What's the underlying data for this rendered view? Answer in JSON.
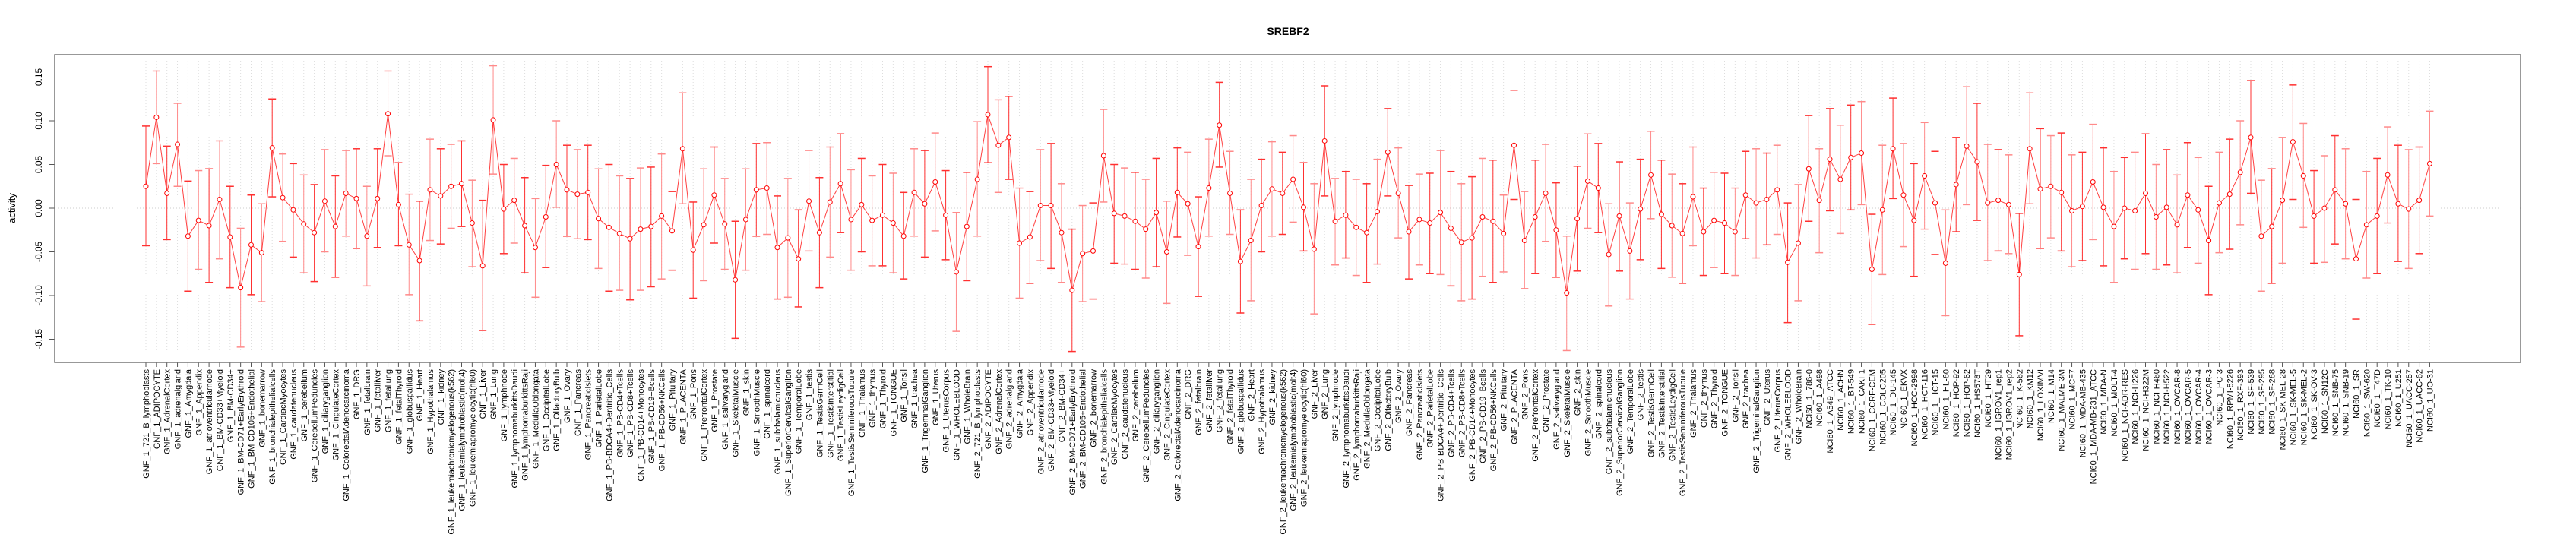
{
  "chart_data": {
    "type": "line",
    "title": "SREBF2",
    "xlabel": "",
    "ylabel": "activity",
    "ylim": [
      -0.175,
      0.175
    ],
    "yticks": [
      -0.15,
      -0.1,
      -0.05,
      0.0,
      0.05,
      0.1,
      0.15
    ],
    "ytick_labels": [
      "-0.15",
      "-0.10",
      "-0.05",
      "0.00",
      "0.05",
      "0.10",
      "0.15"
    ],
    "grid": "vertical dotted per category, horizontal dotted at 0",
    "legend": "none",
    "series_color": "#ff0000",
    "categories": [
      "GNF_1_721_B_lymphoblasts",
      "GNF_1_ADIPOCYTE",
      "GNF_1_AdrenalCortex",
      "GNF_1_adrenalgland",
      "GNF_1_Amygdala",
      "GNF_1_Appendix",
      "GNF_1_atrioventricularnode",
      "GNF_1_BM-CD33+Myeloid",
      "GNF_1_BM-CD34+",
      "GNF_1_BM-CD71+EarlyErythroid",
      "GNF_1_BM-CD105+Endothelial",
      "GNF_1_bonemarrow",
      "GNF_1_bronchialepithelialcells",
      "GNF_1_CardiacMyocytes",
      "GNF_1_caudatenucleus",
      "GNF_1_cerebellum",
      "GNF_1_CerebellumPeduncles",
      "GNF_1_ciliaryganglion",
      "GNF_1_CingulateCortex",
      "GNF_1_ColorectalAdenocarcinoma",
      "GNF_1_DRG",
      "GNF_1_fetalbrain",
      "GNF_1_fetalliver",
      "GNF_1_fetallung",
      "GNF_1_fetalThyroid",
      "GNF_1_globuspallidus",
      "GNF_1_Heart",
      "GNF_1_Hypothalamus",
      "GNF_1_kidney",
      "GNF_1_leukemiachronicmyelogenous(k562)",
      "GNF_1_leukemialymphoblastic(molt4)",
      "GNF_1_leukemiapromyelocytic(hl60)",
      "GNF_1_Liver",
      "GNF_1_Lung",
      "GNF_1_lymphnode",
      "GNF_1_lymphomaburkittsDaudi",
      "GNF_1_lymphomaburkittsRaji",
      "GNF_1_MedullaOblongata",
      "GNF_1_OccipitalLobe",
      "GNF_1_OlfactoryBulb",
      "GNF_1_Ovary",
      "GNF_1_Pancreas",
      "GNF_1_PancreaticIslets",
      "GNF_1_ParietalLobe",
      "GNF_1_PB-BDCA4+Dentritic_Cells",
      "GNF_1_PB-CD4+Tcells",
      "GNF_1_PB-CD8+Tcells",
      "GNF_1_PB-CD14+Monocytes",
      "GNF_1_PB-CD19+Bcells",
      "GNF_1_PB-CD56+NKCells",
      "GNF_1_Pituitary",
      "GNF_1_PLACENTA",
      "GNF_1_Pons",
      "GNF_1_PrefrontalCortex",
      "GNF_1_Prostate",
      "GNF_1_salivarygland",
      "GNF_1_SkeletalMuscle",
      "GNF_1_skin",
      "GNF_1_SmoothMuscle",
      "GNF_1_spinalcord",
      "GNF_1_subthalamicnucleus",
      "GNF_1_SuperiorCervicalGanglion",
      "GNF_1_TemporalLobe",
      "GNF_1_testis",
      "GNF_1_TestisGermCell",
      "GNF_1_TestisInterstitial",
      "GNF_1_TestisLeydigCell",
      "GNF_1_TestisSeminiferousTubule",
      "GNF_1_Thalamus",
      "GNF_1_thymus",
      "GNF_1_Thyroid",
      "GNF_1_TONGUE",
      "GNF_1_Tonsil",
      "GNF_1_trachea",
      "GNF_1_TrigeminalGanglion",
      "GNF_1_Uterus",
      "GNF_1_UterusCorpus",
      "GNF_1_WHOLEBLOOD",
      "GNF_1_WholeBrain",
      "GNF_2_721_B_lymphoblasts",
      "GNF_2_ADIPOCYTE",
      "GNF_2_AdrenalCortex",
      "GNF_2_adrenalgland",
      "GNF_2_Amygdala",
      "GNF_2_Appendix",
      "GNF_2_atrioventricularnode",
      "GNF_2_BM-CD33+Myeloid",
      "GNF_2_BM-CD34+",
      "GNF_2_BM-CD71+EarlyErythroid",
      "GNF_2_BM-CD105+Endothelial",
      "GNF_2_bonemarrow",
      "GNF_2_bronchialepithelialcells",
      "GNF_2_CardiacMyocytes",
      "GNF_2_caudatenucleus",
      "GNF_2_cerebellum",
      "GNF_2_CerebellumPeduncles",
      "GNF_2_ciliaryganglion",
      "GNF_2_CingulateCortex",
      "GNF_2_ColorectalAdenocarcinoma",
      "GNF_2_DRG",
      "GNF_2_fetalbrain",
      "GNF_2_fetalliver",
      "GNF_2_fetallung",
      "GNF_2_fetalThyroid",
      "GNF_2_globuspallidus",
      "GNF_2_Heart",
      "GNF_2_Hypothalamus",
      "GNF_2_kidney",
      "GNF_2_leukemiachronicmyelogenous(k562)",
      "GNF_2_leukemialymphoblastic(molt4)",
      "GNF_2_leukemiapromyelocytic(hl60)",
      "GNF_2_Liver",
      "GNF_2_Lung",
      "GNF_2_lymphnode",
      "GNF_2_lymphomaburkittsDaudi",
      "GNF_2_lymphomaburkittsRaji",
      "GNF_2_MedullaOblongata",
      "GNF_2_OccipitalLobe",
      "GNF_2_OlfactoryBulb",
      "GNF_2_Ovary",
      "GNF_2_Pancreas",
      "GNF_2_PancreaticIslets",
      "GNF_2_ParietalLobe",
      "GNF_2_PB-BDCA4+Dentritic_Cells",
      "GNF_2_PB-CD4+Tcells",
      "GNF_2_PB-CD8+Tcells",
      "GNF_2_PB-CD14+Monocytes",
      "GNF_2_PB-CD19+Bcells",
      "GNF_2_PB-CD56+NKCells",
      "GNF_2_Pituitary",
      "GNF_2_PLACENTA",
      "GNF_2_Pons",
      "GNF_2_PrefrontalCortex",
      "GNF_2_Prostate",
      "GNF_2_salivarygland",
      "GNF_2_SkeletalMuscle",
      "GNF_2_skin",
      "GNF_2_SmoothMuscle",
      "GNF_2_spinalcord",
      "GNF_2_subthalamicnucleus",
      "GNF_2_SuperiorCervicalGanglion",
      "GNF_2_TemporalLobe",
      "GNF_2_testis",
      "GNF_2_TestisGermCell",
      "GNF_2_TestisInterstitial",
      "GNF_2_TestisLeydigCell",
      "GNF_2_TestisSeminiferousTubule",
      "GNF_2_Thalamus",
      "GNF_2_thymus",
      "GNF_2_Thyroid",
      "GNF_2_TONGUE",
      "GNF_2_Tonsil",
      "GNF_2_trachea",
      "GNF_2_TrigeminalGanglion",
      "GNF_2_Uterus",
      "GNF_2_UterusCorpus",
      "GNF_2_WHOLEBLOOD",
      "GNF_2_WholeBrain",
      "NCI60_1_786-0",
      "NCI60_1_A498",
      "NCI60_1_A549_ATCC",
      "NCI60_1_ACHN",
      "NCI60_1_BT-549",
      "NCI60_1_CAKI-1",
      "NCI60_1_CCRF-CEM",
      "NCI60_1_COLO205",
      "NCI60_1_DU-145",
      "NCI60_1_EKVX",
      "NCI60_1_HCC-2998",
      "NCI60_1_HCT-116",
      "NCI60_1_HCT-15",
      "NCI60_1_HL-60",
      "NCI60_1_HOP-92",
      "NCI60_1_HOP-62",
      "NCI60_1_HS578T",
      "NCI60_1_HT29",
      "NCI60_1_IGROV1_rep1",
      "NCI60_1_IGROV1_rep2",
      "NCI60_1_K-562",
      "NCI60_1_KM12",
      "NCI60_1_LOXIMVI",
      "NCI60_1_M14",
      "NCI60_1_MALME-3M",
      "NCI60_1_MCF7",
      "NCI60_1_MDA-MB-435",
      "NCI60_1_MDA-MB-231_ATCC",
      "NCI60_1_MDA-N",
      "NCI60_1_MOLT-4",
      "NCI60_1_NCI-ADR-RES",
      "NCI60_1_NCI-H226",
      "NCI60_1_NCI-H322M",
      "NCI60_1_NCI-H460",
      "NCI60_1_NCI-H522",
      "NCI60_1_OVCAR-8",
      "NCI60_1_OVCAR-5",
      "NCI60_1_OVCAR-4",
      "NCI60_1_OVCAR-3",
      "NCI60_1_PC-3",
      "NCI60_1_RPMI-8226",
      "NCI60_1_RXF-393",
      "NCI60_1_SF-539",
      "NCI60_1_SF-295",
      "NCI60_1_SF-268",
      "NCI60_1_SK-MEL-28",
      "NCI60_1_SK-MEL-5",
      "NCI60_1_SK-MEL-2",
      "NCI60_1_SK-OV-3",
      "NCI60_1_SN12C",
      "NCI60_1_SNB-75",
      "NCI60_1_SNB-19",
      "NCI60_1_SR",
      "NCI60_1_SW-620",
      "NCI60_1_T47D",
      "NCI60_1_TK-10",
      "NCI60_1_U251",
      "NCI60_1_UACC-257",
      "NCI60_1_UACC-62",
      "NCI60_1_UO-31"
    ],
    "mean": [
      0.025,
      0.104,
      0.017,
      0.073,
      -0.032,
      -0.014,
      -0.02,
      0.01,
      -0.033,
      -0.091,
      -0.042,
      -0.051,
      0.069,
      0.012,
      -0.002,
      -0.018,
      -0.028,
      0.008,
      -0.021,
      0.017,
      0.011,
      -0.032,
      0.011,
      0.108,
      0.004,
      -0.042,
      -0.06,
      0.021,
      0.014,
      0.025,
      0.028,
      -0.017,
      -0.066,
      0.101,
      -0.001,
      0.009,
      -0.02,
      -0.045,
      -0.01,
      0.05,
      0.021,
      0.016,
      0.018,
      -0.012,
      -0.022,
      -0.029,
      -0.035,
      -0.024,
      -0.021,
      -0.009,
      -0.026,
      0.068,
      -0.048,
      -0.019,
      0.015,
      -0.018,
      -0.082,
      -0.013,
      0.021,
      0.023,
      -0.045,
      -0.034,
      -0.058,
      0.008,
      -0.028,
      0.007,
      0.028,
      -0.013,
      0.004,
      -0.014,
      -0.008,
      -0.017,
      -0.032,
      0.018,
      0.005,
      0.03,
      -0.008,
      -0.073,
      -0.021,
      0.033,
      0.107,
      0.072,
      0.081,
      -0.04,
      -0.033,
      0.003,
      0.003,
      -0.028,
      -0.094,
      -0.052,
      -0.049,
      0.06,
      -0.006,
      -0.009,
      -0.015,
      -0.024,
      -0.005,
      -0.05,
      0.018,
      0.005,
      -0.044,
      0.023,
      0.095,
      0.017,
      -0.061,
      -0.037,
      0.003,
      0.022,
      0.017,
      0.033,
      0.001,
      -0.047,
      0.077,
      -0.015,
      -0.008,
      -0.022,
      -0.028,
      -0.004,
      0.064,
      0.017,
      -0.027,
      -0.013,
      -0.017,
      -0.005,
      -0.023,
      -0.039,
      -0.034,
      -0.01,
      -0.015,
      -0.029,
      0.072,
      -0.037,
      -0.01,
      0.017,
      -0.025,
      -0.097,
      -0.012,
      0.031,
      0.023,
      -0.053,
      -0.009,
      -0.049,
      -0.001,
      0.038,
      -0.007,
      -0.02,
      -0.029,
      0.013,
      -0.027,
      -0.014,
      -0.017,
      -0.027,
      0.015,
      0.006,
      0.01,
      0.021,
      -0.062,
      -0.04,
      0.045,
      0.009,
      0.056,
      0.033,
      0.058,
      0.063,
      -0.07,
      -0.002,
      0.068,
      0.015,
      -0.014,
      0.037,
      0.006,
      -0.063,
      0.027,
      0.071,
      0.053,
      0.006,
      0.009,
      0.004,
      -0.076,
      0.068,
      0.022,
      0.025,
      0.018,
      -0.003,
      0.002,
      0.03,
      0.001,
      -0.021,
      0.0,
      -0.003,
      0.017,
      -0.01,
      0.001,
      -0.019,
      0.015,
      -0.002,
      -0.037,
      0.006,
      0.016,
      0.041,
      0.081,
      -0.032,
      -0.021,
      0.009,
      0.076,
      0.037,
      -0.009,
      0.0,
      0.021,
      0.005,
      -0.058,
      -0.019,
      -0.009,
      0.038,
      0.005,
      -0.001,
      0.009,
      0.051
    ],
    "upper": [
      0.094,
      0.157,
      0.071,
      0.12,
      0.031,
      0.043,
      0.045,
      0.077,
      0.025,
      -0.023,
      0.015,
      0.005,
      0.125,
      0.062,
      0.051,
      0.038,
      0.027,
      0.067,
      0.037,
      0.066,
      0.068,
      0.025,
      0.068,
      0.157,
      0.052,
      0.016,
      0.008,
      0.079,
      0.068,
      0.073,
      0.077,
      0.032,
      0.009,
      0.163,
      0.05,
      0.057,
      0.035,
      0.011,
      0.049,
      0.1,
      0.072,
      0.067,
      0.072,
      0.045,
      0.05,
      0.037,
      0.034,
      0.046,
      0.047,
      0.062,
      0.019,
      0.132,
      0.007,
      0.045,
      0.07,
      0.034,
      -0.015,
      0.045,
      0.074,
      0.075,
      0.014,
      0.034,
      -0.002,
      0.066,
      0.035,
      0.07,
      0.085,
      0.044,
      0.057,
      0.037,
      0.05,
      0.04,
      0.018,
      0.068,
      0.066,
      0.086,
      0.043,
      -0.005,
      0.041,
      0.099,
      0.162,
      0.124,
      0.128,
      0.023,
      0.019,
      0.067,
      0.074,
      0.028,
      -0.024,
      0.003,
      0.006,
      0.113,
      0.05,
      0.046,
      0.041,
      0.033,
      0.057,
      0.008,
      0.069,
      0.064,
      0.013,
      0.079,
      0.144,
      0.065,
      -0.002,
      0.033,
      0.056,
      0.076,
      0.064,
      0.083,
      0.052,
      0.028,
      0.14,
      0.034,
      0.042,
      0.033,
      0.028,
      0.056,
      0.114,
      0.069,
      0.026,
      0.039,
      0.04,
      0.066,
      0.042,
      0.028,
      0.036,
      0.057,
      0.055,
      0.015,
      0.135,
      0.019,
      0.055,
      0.073,
      0.029,
      -0.032,
      0.048,
      0.085,
      0.074,
      0.005,
      0.053,
      0.006,
      0.056,
      0.088,
      0.055,
      0.039,
      0.028,
      0.07,
      0.023,
      0.041,
      0.04,
      0.023,
      0.065,
      0.068,
      0.063,
      0.072,
      0.006,
      0.027,
      0.106,
      0.068,
      0.114,
      0.095,
      0.118,
      0.122,
      -0.007,
      0.072,
      0.126,
      0.074,
      0.051,
      0.098,
      0.065,
      -0.002,
      0.081,
      0.139,
      0.12,
      0.073,
      0.067,
      0.061,
      -0.006,
      0.132,
      0.091,
      0.083,
      0.086,
      0.061,
      0.064,
      0.096,
      0.069,
      0.042,
      0.058,
      0.064,
      0.085,
      0.05,
      0.067,
      0.038,
      0.075,
      0.058,
      0.025,
      0.064,
      0.079,
      0.1,
      0.146,
      0.032,
      0.045,
      0.081,
      0.141,
      0.097,
      0.043,
      0.06,
      0.083,
      0.068,
      0.01,
      0.042,
      0.057,
      0.093,
      0.072,
      0.067,
      0.07,
      0.111
    ],
    "lower": [
      -0.043,
      0.051,
      -0.036,
      0.025,
      -0.095,
      -0.07,
      -0.085,
      -0.058,
      -0.091,
      -0.159,
      -0.099,
      -0.107,
      0.013,
      -0.038,
      -0.056,
      -0.074,
      -0.084,
      -0.05,
      -0.079,
      -0.032,
      -0.046,
      -0.089,
      -0.045,
      0.06,
      -0.043,
      -0.099,
      -0.129,
      -0.037,
      -0.041,
      -0.023,
      -0.021,
      -0.067,
      -0.14,
      0.039,
      -0.052,
      -0.04,
      -0.074,
      -0.102,
      -0.068,
      0.001,
      -0.032,
      -0.035,
      -0.036,
      -0.069,
      -0.095,
      -0.094,
      -0.105,
      -0.094,
      -0.09,
      -0.081,
      -0.071,
      0.005,
      -0.103,
      -0.083,
      -0.04,
      -0.07,
      -0.149,
      -0.071,
      -0.032,
      -0.03,
      -0.104,
      -0.102,
      -0.113,
      -0.049,
      -0.091,
      -0.056,
      -0.028,
      -0.071,
      -0.05,
      -0.066,
      -0.066,
      -0.074,
      -0.081,
      -0.032,
      -0.056,
      -0.026,
      -0.059,
      -0.141,
      -0.083,
      -0.032,
      0.052,
      0.018,
      0.033,
      -0.103,
      -0.086,
      -0.06,
      -0.069,
      -0.085,
      -0.164,
      -0.107,
      -0.104,
      0.007,
      -0.063,
      -0.064,
      -0.07,
      -0.08,
      -0.067,
      -0.109,
      -0.033,
      -0.054,
      -0.101,
      -0.032,
      0.047,
      -0.03,
      -0.12,
      -0.106,
      -0.05,
      -0.032,
      -0.03,
      -0.016,
      -0.049,
      -0.121,
      0.014,
      -0.065,
      -0.057,
      -0.077,
      -0.085,
      -0.064,
      0.014,
      -0.034,
      -0.081,
      -0.065,
      -0.075,
      -0.076,
      -0.089,
      -0.106,
      -0.104,
      -0.078,
      -0.085,
      -0.073,
      0.01,
      -0.092,
      -0.075,
      -0.038,
      -0.079,
      -0.163,
      -0.072,
      -0.023,
      -0.028,
      -0.112,
      -0.072,
      -0.104,
      -0.059,
      -0.012,
      -0.069,
      -0.079,
      -0.086,
      -0.043,
      -0.077,
      -0.068,
      -0.075,
      -0.077,
      -0.035,
      -0.057,
      -0.042,
      -0.03,
      -0.131,
      -0.106,
      -0.015,
      -0.051,
      -0.003,
      -0.029,
      -0.002,
      0.004,
      -0.133,
      -0.076,
      0.011,
      -0.044,
      -0.078,
      -0.024,
      -0.053,
      -0.123,
      -0.027,
      0.004,
      -0.014,
      -0.06,
      -0.049,
      -0.052,
      -0.146,
      0.005,
      -0.046,
      -0.034,
      -0.049,
      -0.067,
      -0.06,
      -0.036,
      -0.066,
      -0.085,
      -0.058,
      -0.07,
      -0.052,
      -0.07,
      -0.065,
      -0.074,
      -0.045,
      -0.063,
      -0.099,
      -0.051,
      -0.047,
      -0.019,
      0.017,
      -0.095,
      -0.086,
      -0.063,
      0.01,
      -0.022,
      -0.063,
      -0.062,
      -0.041,
      -0.058,
      -0.127,
      -0.08,
      -0.075,
      -0.017,
      -0.061,
      -0.069,
      -0.052,
      -0.009
    ]
  }
}
